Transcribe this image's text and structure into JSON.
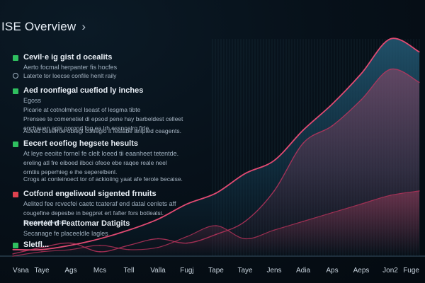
{
  "header": {
    "title": "ISE Overview",
    "chevron": "›"
  },
  "sections": [
    {
      "icon": "green",
      "head": "Cevil·e ig gist d ocealits",
      "lines": [
        "Aerto focmal herpanter fis hocfes"
      ]
    },
    {
      "icon": "dot",
      "head": "",
      "lines": [
        "Laterte tor loecse confile henlt raily"
      ]
    },
    {
      "icon": "green",
      "head": "Aed roonfiegal cuefiod ly inches",
      "lines": [
        "Egoss",
        "Picarie at cotnolmhecl lseast of lesgma tibte",
        "Prensee te comenetiel di epsod pene hay barbeldest celleet",
        "enchauen agis gorond fog ea lrh essnoalrg firle."
      ]
    },
    {
      "icon": "",
      "head": "",
      "lines": [
        "Aoved ceserroe obiegl colliegio it feslabe anlpied ceagents."
      ]
    },
    {
      "icon": "green",
      "head": "Eecert eoefiog hegsete hesults",
      "lines": [
        "At leye eeoite fornel fe clelt loeed tii eaanheet tetentde.",
        "ereling atl fre eiboed ilboci ofeoe ebe raqee reale neel",
        "orntiis peperhieg e ihe seperelbenl."
      ]
    },
    {
      "icon": "",
      "head": "",
      "lines": [
        "Crogs at conleinoect tor of ackioiing yaat afe ferole becaise."
      ]
    },
    {
      "icon": "red",
      "head": "Cotfond engeliwoul sigented frnuits",
      "lines": [
        "Aelited fee rcvecfei caetc tcateraf end datal cenlets aff",
        "cougefine depesbe in begpret ert fafier fors botlealsi.",
        "Ieantoe ldeetoeo"
      ]
    },
    {
      "icon": "",
      "head": "Reerted d Feattomar Datigits",
      "lines": [
        "Secanage fe placeeldle lagles"
      ]
    },
    {
      "icon": "green",
      "head": "Sletfl...",
      "lines": []
    }
  ],
  "chart_data": {
    "type": "area",
    "categories": [
      "Vsna",
      "Taye",
      "Ags",
      "Mcs",
      "Tell",
      "Valla",
      "Fugj",
      "Tape",
      "Taye",
      "Jens",
      "Adia",
      "Aps",
      "Aeps",
      "Jon2",
      "Fuge"
    ],
    "series": [
      {
        "values": [
          3,
          3,
          5,
          8,
          12,
          17,
          24,
          29,
          38,
          44,
          58,
          70,
          84,
          100,
          94
        ]
      },
      {
        "values": [
          1,
          4,
          6,
          2,
          5,
          8,
          6,
          10,
          16,
          30,
          52,
          60,
          72,
          86,
          80
        ]
      },
      {
        "values": [
          0,
          2,
          3,
          5,
          3,
          4,
          9,
          14,
          8,
          12,
          16,
          20,
          24,
          28,
          30
        ]
      }
    ],
    "title": "",
    "xlabel": "",
    "ylabel": "",
    "ylim": [
      0,
      100
    ],
    "grid": true,
    "legend": "none",
    "colors": {
      "primary": "#e04a72",
      "secondary": "#c2355f",
      "fill": "#1e4e66",
      "grid": "#2a4a5c"
    }
  }
}
